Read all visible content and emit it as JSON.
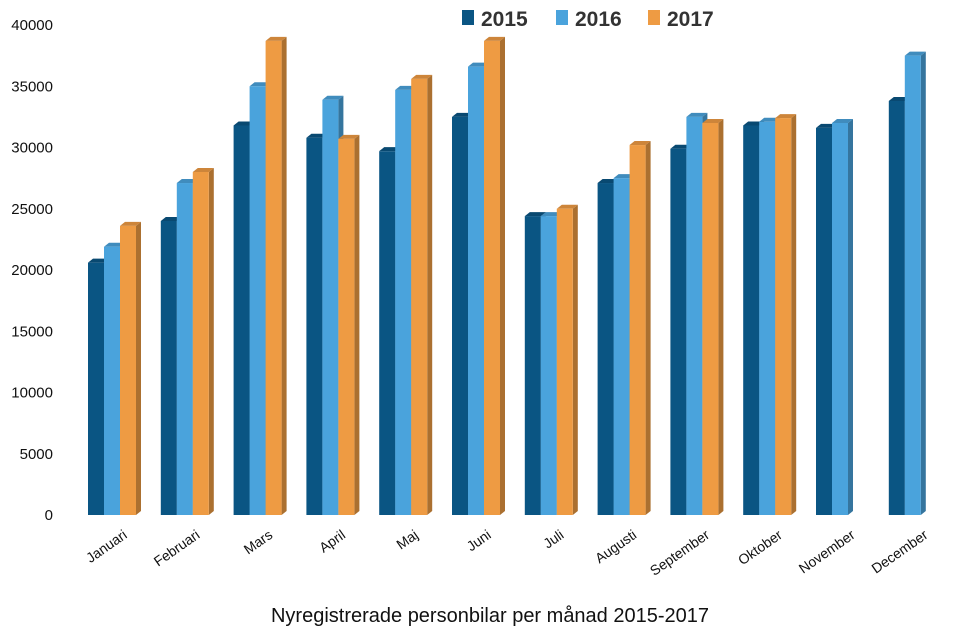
{
  "chart_data": {
    "type": "bar",
    "title": "Nyregistrerade personbilar per månad 2015-2017",
    "xlabel": "",
    "ylabel": "",
    "ylim": [
      0,
      40000
    ],
    "yticks": [
      0,
      5000,
      10000,
      15000,
      20000,
      25000,
      30000,
      35000,
      40000
    ],
    "grid": false,
    "legend_position": "top",
    "categories": [
      "Januari",
      "Februari",
      "Mars",
      "April",
      "Maj",
      "Juni",
      "Juli",
      "Augusti",
      "September",
      "Oktober",
      "November",
      "December"
    ],
    "series": [
      {
        "name": "2015",
        "color": "#0a5583",
        "values": [
          20600,
          24000,
          31800,
          30800,
          29700,
          32500,
          24400,
          27100,
          29900,
          31800,
          31600,
          33800
        ]
      },
      {
        "name": "2016",
        "color": "#4aa3dc",
        "values": [
          21900,
          27100,
          35000,
          33900,
          34700,
          36600,
          24400,
          27500,
          32500,
          32100,
          32000,
          37500
        ]
      },
      {
        "name": "2017",
        "color": "#ee9b43",
        "values": [
          23600,
          28000,
          38700,
          30700,
          35600,
          38700,
          25000,
          30200,
          32000,
          32400,
          null,
          null
        ]
      }
    ]
  }
}
